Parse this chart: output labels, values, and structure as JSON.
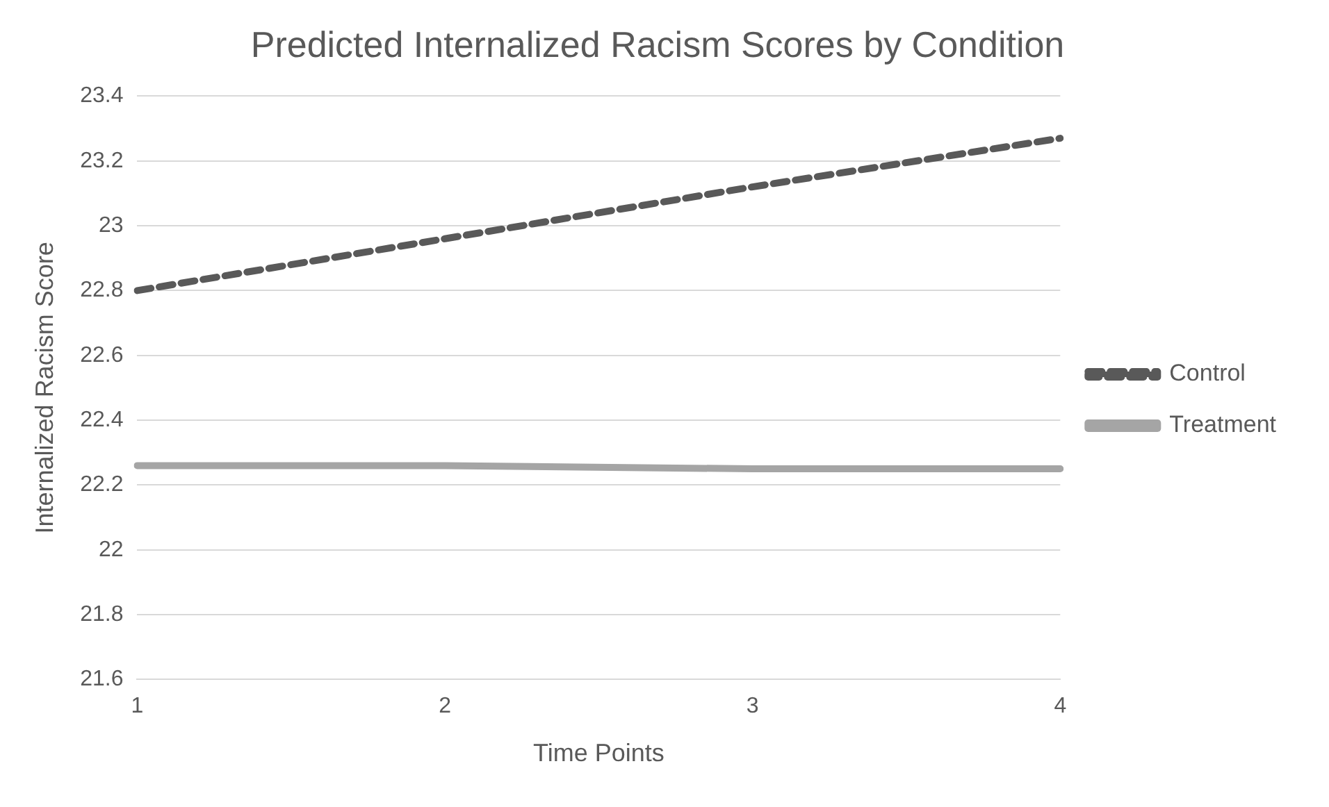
{
  "chart_data": {
    "type": "line",
    "title": "Predicted Internalized Racism Scores by Condition",
    "xlabel": "Time Points",
    "ylabel": "Internalized Racism Score",
    "categories": [
      "1",
      "2",
      "3",
      "4"
    ],
    "series": [
      {
        "name": "Control",
        "color": "#595959",
        "line_style": "dashed",
        "values": [
          22.8,
          22.96,
          23.12,
          23.27
        ]
      },
      {
        "name": "Treatment",
        "color": "#a5a5a5",
        "line_style": "solid",
        "values": [
          22.26,
          22.26,
          22.25,
          22.25
        ]
      }
    ],
    "ylim": [
      21.6,
      23.4
    ],
    "yticks": [
      21.6,
      21.8,
      22,
      22.2,
      22.4,
      22.6,
      22.8,
      23,
      23.2,
      23.4
    ],
    "grid": "y",
    "legend": "right",
    "marker": "none"
  }
}
